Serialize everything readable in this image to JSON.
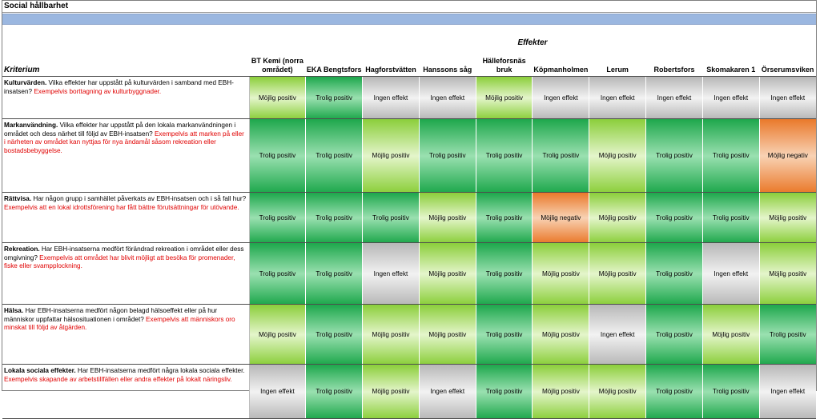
{
  "sheet_title": "Social hållbarhet",
  "kriterium_header": "Kriterium",
  "effekter_header": "Effekter",
  "columns": [
    "BT Kemi (norra området)",
    "EKA Bengtsfors",
    "Hagforstvätten",
    "Hanssons såg",
    "Hälleforsnäs bruk",
    "Köpmanholmen",
    "Lerum",
    "Robertsfors",
    "Skomakaren 1",
    "Örserumsviken"
  ],
  "colors": {
    "trolig_positiv": "#1fa84d",
    "mojlig_positiv": "#8ccf3c",
    "ingen_effekt": "#b8b8b8",
    "mojlig_negativ": "#ea7a2c"
  },
  "rows": [
    {
      "name": "Kulturvärden.",
      "question": " Vilka effekter har uppstått på kulturvärden i samband med EBH-insatsen?",
      "example": " Exempelvis borttagning av kulturbyggnader.",
      "values": [
        "Möjlig positiv",
        "Trolig positiv",
        "Ingen effekt",
        "Ingen effekt",
        "Möjlig positiv",
        "Ingen effekt",
        "Ingen effekt",
        "Ingen effekt",
        "Ingen effekt",
        "Ingen effekt"
      ]
    },
    {
      "name": "Markanvändning.",
      "question": " Vilka effekter har uppstått på den lokala markanvändningen i området och dess närhet till följd av EBH-insatsen?",
      "example": " Exempelvis att marken på eller i närheten av området kan nyttjas för nya ändamål såsom rekreation eller bostadsbebyggelse.",
      "values": [
        "Trolig positiv",
        "Trolig positiv",
        "Möjlig positiv",
        "Trolig positiv",
        "Trolig positiv",
        "Trolig positiv",
        "Möjlig positiv",
        "Trolig positiv",
        "Trolig positiv",
        "Möjlig negativ"
      ]
    },
    {
      "name": "Rättvisa.",
      "question": " Har någon grupp i samhället påverkats av EBH-insatsen och i så fall hur?",
      "example": " Exempelvis att en lokal idrottsförening har fått bättre förutsättningar för utövande.",
      "values": [
        "Trolig positiv",
        "Trolig positiv",
        "Trolig positiv",
        "Möjlig positiv",
        "Trolig positiv",
        "Möjlig negativ",
        "Möjlig positiv",
        "Trolig positiv",
        "Trolig positiv",
        "Möjlig positiv"
      ]
    },
    {
      "name": "Rekreation.",
      "question": " Har EBH-insatserna medfört förändrad rekreation i området eller dess omgivning?",
      "example": " Exempelvis att området har blivit möjligt att besöka för promenader, fiske eller svampplockning.",
      "values": [
        "Trolig positiv",
        "Trolig positiv",
        "Ingen effekt",
        "Möjlig positiv",
        "Trolig positiv",
        "Möjlig positiv",
        "Möjlig positiv",
        "Trolig positiv",
        "Ingen effekt",
        "Möjlig positiv"
      ]
    },
    {
      "name": "Hälsa.",
      "question": " Har EBH-insatserna medfört någon belagd hälsoeffekt eller på hur människor uppfattar hälsosituationen i området?",
      "example": " Exempelvis att människors oro minskat till följd av åtgärden.",
      "values": [
        "Möjlig positiv",
        "Trolig positiv",
        "Möjlig positiv",
        "Möjlig positiv",
        "Trolig positiv",
        "Möjlig positiv",
        "Ingen effekt",
        "Trolig positiv",
        "Möjlig positiv",
        "Trolig positiv"
      ]
    },
    {
      "name": "Lokala sociala effekter.",
      "question": " Har EBH-insatserna medfört några lokala sociala effekter.",
      "example": " Exempelvis skapande av arbetstillfällen eller andra effekter på lokalt näringsliv.",
      "values": [
        "Ingen effekt",
        "Trolig positiv",
        "Möjlig positiv",
        "Ingen effekt",
        "Trolig positiv",
        "Möjlig positiv",
        "Möjlig positiv",
        "Trolig positiv",
        "Trolig positiv",
        "Ingen effekt"
      ]
    }
  ]
}
